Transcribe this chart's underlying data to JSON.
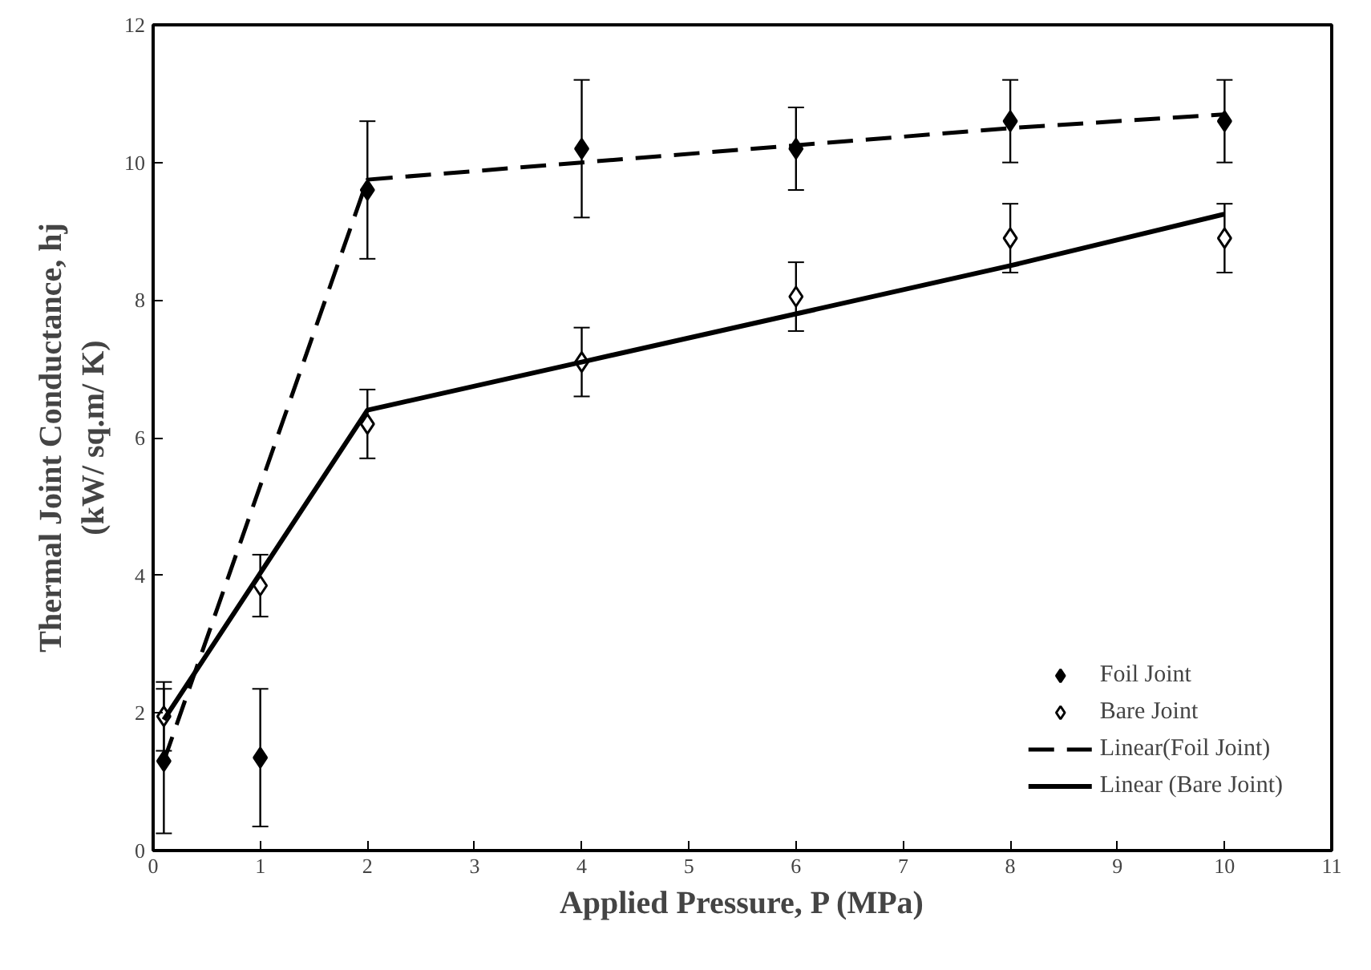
{
  "chart_data": {
    "type": "scatter",
    "xlabel": "Applied Pressure, P (MPa)",
    "ylabel": "Thermal Joint Conductance, hj\n(kW/ sq.m/ K)",
    "xlim": [
      0,
      11
    ],
    "ylim": [
      0,
      12
    ],
    "xticks": [
      0,
      1,
      2,
      3,
      4,
      5,
      6,
      7,
      8,
      9,
      10,
      11
    ],
    "yticks": [
      0,
      2,
      4,
      6,
      8,
      10,
      12
    ],
    "grid": false,
    "legend": "bottom right",
    "series": [
      {
        "name": "Foil Joint",
        "marker": "diamond",
        "color": "#000000",
        "x": [
          0.1,
          1,
          2,
          4,
          6,
          8,
          10
        ],
        "values": [
          1.3,
          1.35,
          9.6,
          10.2,
          10.2,
          10.6,
          10.6
        ],
        "errors": [
          1.05,
          1,
          1,
          1,
          0.6,
          0.6,
          0.6
        ]
      },
      {
        "name": "Bare Joint",
        "marker": "diamond",
        "color": "#000000",
        "x": [
          0.1,
          1,
          2,
          4,
          6,
          8,
          10
        ],
        "values": [
          1.95,
          3.85,
          6.2,
          7.1,
          8.05,
          8.9,
          8.9
        ],
        "errors": [
          0.5,
          0.45,
          0.5,
          0.5,
          0.5,
          0.5,
          0.5
        ]
      },
      {
        "name": "Linear(Foil Joint)",
        "type": "line",
        "line_style": "dashed",
        "color": "#000000",
        "x": [
          0.1,
          2,
          4,
          6,
          8,
          10
        ],
        "values": [
          1.3,
          9.75,
          10.0,
          10.25,
          10.5,
          10.7
        ]
      },
      {
        "name": "Linear (Bare Joint)",
        "type": "line",
        "line_style": "solid",
        "color": "#000000",
        "x": [
          0.1,
          2,
          4,
          6,
          8,
          10
        ],
        "values": [
          1.9,
          6.4,
          7.1,
          7.8,
          8.5,
          9.25
        ]
      }
    ]
  }
}
